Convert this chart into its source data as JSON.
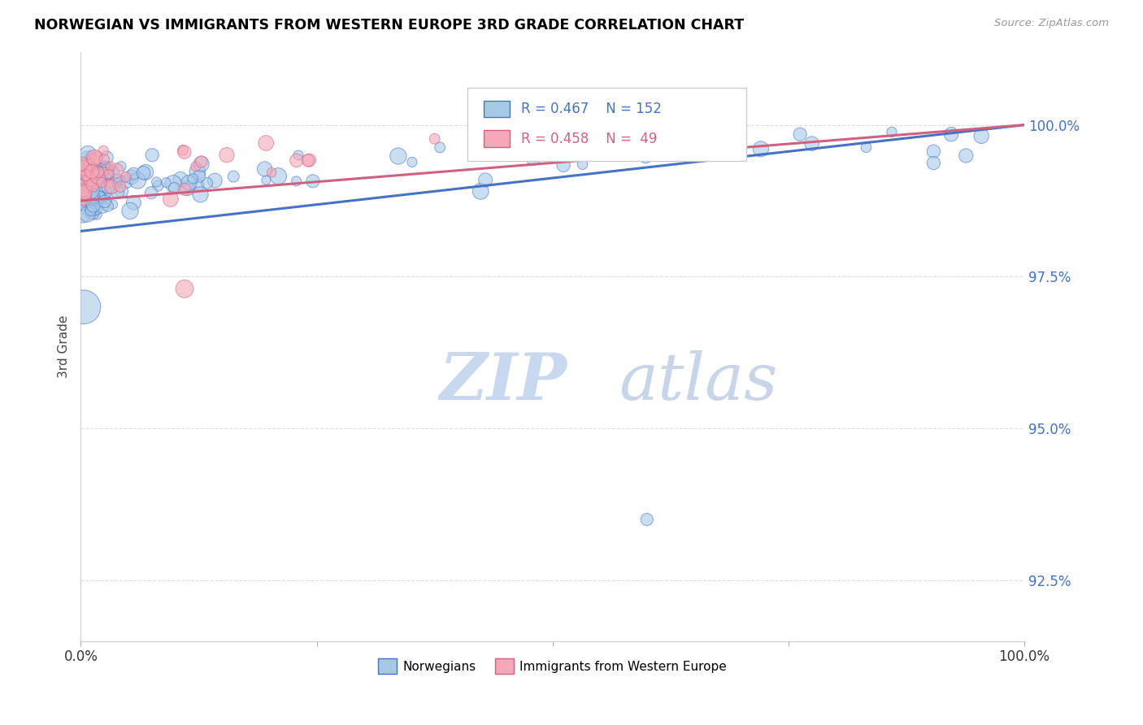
{
  "title": "NORWEGIAN VS IMMIGRANTS FROM WESTERN EUROPE 3RD GRADE CORRELATION CHART",
  "source": "Source: ZipAtlas.com",
  "ylabel": "3rd Grade",
  "legend_label_blue": "Norwegians",
  "legend_label_pink": "Immigrants from Western Europe",
  "r_blue": 0.467,
  "n_blue": 152,
  "r_pink": 0.458,
  "n_pink": 49,
  "color_blue": "#A8C8E8",
  "color_pink": "#F4A8B8",
  "line_color_blue": "#4472C4",
  "line_color_pink": "#D06080",
  "xmin": 0.0,
  "xmax": 1.0,
  "ymin": 91.5,
  "ymax": 101.2,
  "yticks": [
    92.5,
    95.0,
    97.5,
    100.0
  ],
  "ytick_labels": [
    "92.5%",
    "95.0%",
    "97.5%",
    "100.0%"
  ],
  "blue_trend_x": [
    0.0,
    1.0
  ],
  "blue_trend_y": [
    98.25,
    100.0
  ],
  "pink_trend_x": [
    0.0,
    1.0
  ],
  "pink_trend_y": [
    98.75,
    100.0
  ]
}
